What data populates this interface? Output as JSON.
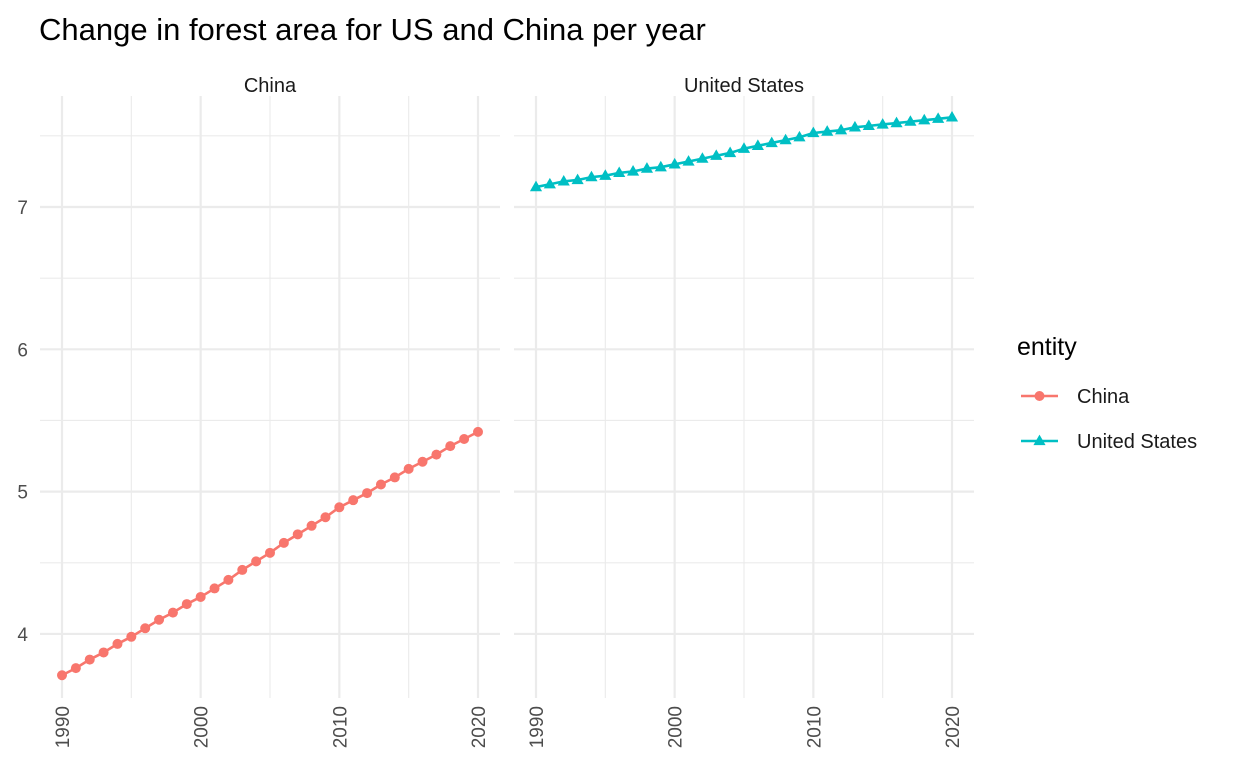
{
  "chart_data": {
    "type": "line",
    "title": "Change in forest area for US and China per year",
    "facet_by": "entity",
    "legend": {
      "title": "entity",
      "placement": "right"
    },
    "grid": true,
    "xlim": [
      1990,
      2020
    ],
    "ylim": [
      3.55,
      7.78
    ],
    "x_ticks": [
      "1990",
      "2000",
      "2010",
      "2020"
    ],
    "y_ticks": [
      "4",
      "5",
      "6",
      "7"
    ],
    "x_tick_values": [
      1990,
      2000,
      2010,
      2020
    ],
    "y_tick_values": [
      4,
      5,
      6,
      7
    ],
    "x": [
      1990,
      1991,
      1992,
      1993,
      1994,
      1995,
      1996,
      1997,
      1998,
      1999,
      2000,
      2001,
      2002,
      2003,
      2004,
      2005,
      2006,
      2007,
      2008,
      2009,
      2010,
      2011,
      2012,
      2013,
      2014,
      2015,
      2016,
      2017,
      2018,
      2019,
      2020
    ],
    "series": [
      {
        "name": "China",
        "facet": "China",
        "color": "#F8766D",
        "marker": "circle",
        "values": [
          3.71,
          3.76,
          3.82,
          3.87,
          3.93,
          3.98,
          4.04,
          4.1,
          4.15,
          4.21,
          4.26,
          4.32,
          4.38,
          4.45,
          4.51,
          4.57,
          4.64,
          4.7,
          4.76,
          4.82,
          4.89,
          4.94,
          4.99,
          5.05,
          5.1,
          5.16,
          5.21,
          5.26,
          5.32,
          5.37,
          5.42
        ]
      },
      {
        "name": "United States",
        "facet": "United States",
        "color": "#00BFC4",
        "marker": "triangle",
        "values": [
          7.14,
          7.16,
          7.18,
          7.19,
          7.21,
          7.22,
          7.24,
          7.25,
          7.27,
          7.28,
          7.3,
          7.32,
          7.34,
          7.36,
          7.38,
          7.41,
          7.43,
          7.45,
          7.47,
          7.49,
          7.52,
          7.53,
          7.54,
          7.56,
          7.57,
          7.58,
          7.59,
          7.6,
          7.61,
          7.62,
          7.63
        ]
      }
    ],
    "facets": [
      "China",
      "United States"
    ]
  }
}
